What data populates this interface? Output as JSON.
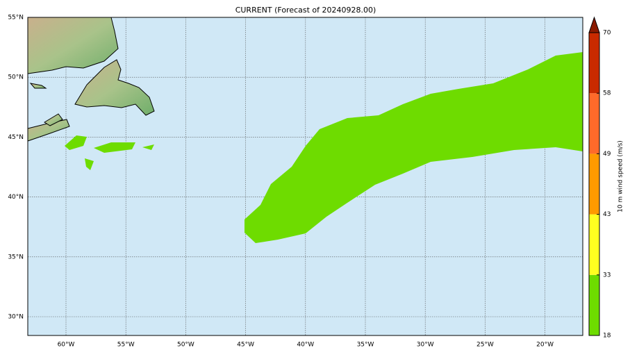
{
  "title": "CURRENT (Forecast of 20240928.00)",
  "map": {
    "lon_labels": [
      "60°W",
      "55°W",
      "50°W",
      "45°W",
      "40°W",
      "35°W",
      "30°W",
      "25°W",
      "20°W"
    ],
    "lat_labels": [
      "55°N",
      "50°N",
      "45°N",
      "40°N",
      "35°N",
      "30°N"
    ]
  },
  "colorbar": {
    "label": "10 m wind speed (m/s)",
    "ticks": [
      18,
      33,
      43,
      49,
      58,
      70
    ],
    "colors": [
      "#6edc00",
      "#ffff20",
      "#ff9a00",
      "#ff6a2a",
      "#c92a00"
    ],
    "extend_color": "#8b1a00"
  }
}
